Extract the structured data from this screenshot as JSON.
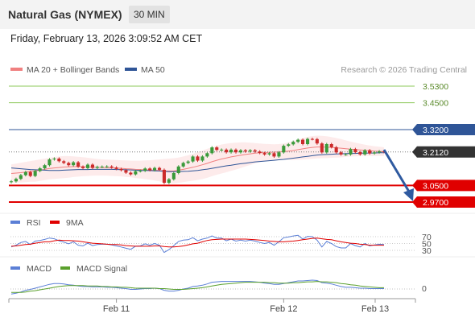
{
  "header": {
    "instrument": "Natural Gas (NYMEX)",
    "timeframe": "30 MIN"
  },
  "datetime": "Friday, February 13, 2026 3:09:52 AM CET",
  "legend": [
    {
      "label": "MA 20 + Bollinger Bands",
      "color": "#f08080"
    },
    {
      "label": "MA 50",
      "color": "#2f5597"
    }
  ],
  "copyright": "Research © 2026 Trading Central",
  "colors": {
    "up": "#3a9a3a",
    "down": "#cc2b2b",
    "support": "#e00000",
    "resistance_far": "#8dc85a",
    "resistance_near": "#2f5597",
    "current": "#333333",
    "arrow": "#2f5aa0"
  },
  "chart_data": [
    {
      "type": "candlestick",
      "ylim": [
        2.95,
        3.58
      ],
      "x_ticks": [
        "Feb 11",
        "Feb 12",
        "Feb 13"
      ],
      "levels": [
        {
          "label": "3.5300",
          "value": 3.53,
          "role": "resistance"
        },
        {
          "label": "3.4500",
          "value": 3.45,
          "role": "resistance"
        },
        {
          "label": "3.3200",
          "value": 3.32,
          "role": "resistance"
        },
        {
          "label": "3.2120",
          "value": 3.212,
          "role": "current"
        },
        {
          "label": "3.0500",
          "value": 3.05,
          "role": "support"
        },
        {
          "label": "2.9700",
          "value": 2.97,
          "role": "support"
        }
      ],
      "close": [
        3.07,
        3.082,
        3.1,
        3.115,
        3.096,
        3.12,
        3.133,
        3.148,
        3.176,
        3.18,
        3.167,
        3.159,
        3.148,
        3.162,
        3.141,
        3.134,
        3.151,
        3.135,
        3.14,
        3.141,
        3.142,
        3.137,
        3.13,
        3.124,
        3.112,
        3.104,
        3.119,
        3.121,
        3.132,
        3.124,
        3.135,
        3.126,
        3.063,
        3.08,
        3.11,
        3.142,
        3.159,
        3.166,
        3.19,
        3.17,
        3.19,
        3.206,
        3.234,
        3.222,
        3.223,
        3.21,
        3.223,
        3.21,
        3.22,
        3.214,
        3.22,
        3.214,
        3.207,
        3.2,
        3.206,
        3.19,
        3.21,
        3.242,
        3.249,
        3.261,
        3.271,
        3.25,
        3.275,
        3.274,
        3.253,
        3.21,
        3.25,
        3.235,
        3.21,
        3.2,
        3.2,
        3.226,
        3.211,
        3.2,
        3.22,
        3.205,
        3.21,
        3.215,
        3.212
      ],
      "ma20": [
        3.108,
        3.11,
        3.112,
        3.115,
        3.118,
        3.12,
        3.124,
        3.128,
        3.132,
        3.135,
        3.137,
        3.139,
        3.14,
        3.141,
        3.141,
        3.141,
        3.14,
        3.139,
        3.138,
        3.137,
        3.136,
        3.135,
        3.134,
        3.133,
        3.131,
        3.13,
        3.128,
        3.127,
        3.126,
        3.125,
        3.124,
        3.123,
        3.121,
        3.12,
        3.121,
        3.124,
        3.128,
        3.133,
        3.138,
        3.144,
        3.15,
        3.157,
        3.165,
        3.172,
        3.178,
        3.183,
        3.188,
        3.192,
        3.196,
        3.2,
        3.203,
        3.206,
        3.208,
        3.209,
        3.21,
        3.211,
        3.212,
        3.214,
        3.216,
        3.219,
        3.223,
        3.227,
        3.231,
        3.234,
        3.236,
        3.236,
        3.235,
        3.234,
        3.232,
        3.23,
        3.228,
        3.226,
        3.224,
        3.222,
        3.22,
        3.218,
        3.216,
        3.215,
        3.214
      ],
      "bb_upper": [
        3.152,
        3.156,
        3.16,
        3.164,
        3.168,
        3.172,
        3.176,
        3.18,
        3.184,
        3.188,
        3.19,
        3.192,
        3.192,
        3.191,
        3.189,
        3.187,
        3.184,
        3.181,
        3.178,
        3.176,
        3.175,
        3.174,
        3.173,
        3.172,
        3.171,
        3.17,
        3.17,
        3.17,
        3.171,
        3.172,
        3.174,
        3.176,
        3.178,
        3.18,
        3.182,
        3.185,
        3.19,
        3.196,
        3.203,
        3.211,
        3.219,
        3.227,
        3.235,
        3.242,
        3.248,
        3.252,
        3.255,
        3.257,
        3.258,
        3.258,
        3.257,
        3.255,
        3.253,
        3.251,
        3.25,
        3.249,
        3.25,
        3.253,
        3.258,
        3.265,
        3.272,
        3.279,
        3.285,
        3.289,
        3.291,
        3.29,
        3.288,
        3.284,
        3.279,
        3.274,
        3.268,
        3.262,
        3.257,
        3.252,
        3.247,
        3.243,
        3.24,
        3.237,
        3.235
      ],
      "bb_lower": [
        3.064,
        3.064,
        3.064,
        3.066,
        3.068,
        3.068,
        3.072,
        3.076,
        3.08,
        3.082,
        3.084,
        3.086,
        3.088,
        3.091,
        3.093,
        3.095,
        3.096,
        3.097,
        3.098,
        3.098,
        3.097,
        3.096,
        3.095,
        3.094,
        3.091,
        3.09,
        3.086,
        3.084,
        3.081,
        3.078,
        3.074,
        3.07,
        3.064,
        3.06,
        3.06,
        3.063,
        3.066,
        3.07,
        3.073,
        3.077,
        3.081,
        3.087,
        3.095,
        3.102,
        3.108,
        3.114,
        3.121,
        3.127,
        3.134,
        3.142,
        3.149,
        3.157,
        3.163,
        3.167,
        3.17,
        3.173,
        3.174,
        3.175,
        3.174,
        3.173,
        3.174,
        3.175,
        3.177,
        3.179,
        3.181,
        3.182,
        3.182,
        3.184,
        3.185,
        3.186,
        3.188,
        3.19,
        3.191,
        3.192,
        3.193,
        3.193,
        3.192,
        3.193,
        3.193
      ],
      "ma50": [
        3.135,
        3.133,
        3.131,
        3.129,
        3.127,
        3.126,
        3.125,
        3.124,
        3.123,
        3.123,
        3.123,
        3.124,
        3.125,
        3.126,
        3.127,
        3.127,
        3.127,
        3.128,
        3.128,
        3.128,
        3.128,
        3.128,
        3.127,
        3.127,
        3.126,
        3.125,
        3.124,
        3.123,
        3.122,
        3.122,
        3.121,
        3.12,
        3.118,
        3.117,
        3.117,
        3.117,
        3.118,
        3.119,
        3.121,
        3.123,
        3.126,
        3.129,
        3.133,
        3.137,
        3.141,
        3.145,
        3.148,
        3.152,
        3.155,
        3.158,
        3.161,
        3.164,
        3.166,
        3.168,
        3.17,
        3.172,
        3.174,
        3.176,
        3.179,
        3.182,
        3.185,
        3.188,
        3.191,
        3.194,
        3.197,
        3.199,
        3.2,
        3.201,
        3.202,
        3.203,
        3.204,
        3.205,
        3.205,
        3.206,
        3.206,
        3.207,
        3.207,
        3.208,
        3.208
      ]
    },
    {
      "type": "line",
      "ylim": [
        10,
        90
      ],
      "y_ticks": [
        "70",
        "50",
        "30"
      ],
      "legend": [
        {
          "label": "RSI",
          "color": "#5b7fd6"
        },
        {
          "label": "9MA",
          "color": "#e00000"
        }
      ],
      "series": [
        {
          "name": "RSI",
          "values": [
            40,
            45,
            53,
            56,
            47,
            57,
            59,
            62,
            66,
            64,
            58,
            54,
            49,
            55,
            45,
            43,
            51,
            44,
            47,
            48,
            48,
            46,
            43,
            40,
            36,
            33,
            42,
            43,
            49,
            45,
            50,
            45,
            24,
            32,
            44,
            56,
            60,
            61,
            67,
            58,
            63,
            66,
            72,
            66,
            66,
            58,
            63,
            57,
            60,
            57,
            60,
            57,
            53,
            50,
            53,
            45,
            55,
            67,
            69,
            72,
            74,
            63,
            71,
            70,
            60,
            40,
            56,
            50,
            41,
            37,
            37,
            50,
            44,
            40,
            50,
            43,
            46,
            48,
            47
          ]
        },
        {
          "name": "9MA",
          "values": [
            42,
            43,
            45,
            47,
            48,
            51,
            53,
            55,
            55,
            58,
            60,
            59,
            59,
            58,
            57,
            55,
            53,
            51,
            50,
            49,
            48,
            47,
            47,
            46,
            44,
            43,
            42,
            42,
            42,
            42,
            43,
            43,
            41,
            40,
            40,
            41,
            43,
            46,
            49,
            51,
            55,
            59,
            61,
            62,
            63,
            63,
            63,
            63,
            63,
            63,
            62,
            61,
            60,
            59,
            57,
            56,
            55,
            55,
            56,
            57,
            59,
            61,
            63,
            65,
            66,
            64,
            62,
            61,
            58,
            55,
            53,
            51,
            50,
            48,
            47,
            45,
            45,
            45,
            45
          ]
        }
      ]
    },
    {
      "type": "line",
      "y_ticks": [
        "0"
      ],
      "legend": [
        {
          "label": "MACD",
          "color": "#5b7fd6"
        },
        {
          "label": "MACD Signal",
          "color": "#5aa02c"
        }
      ],
      "series": [
        {
          "name": "MACD",
          "values": [
            -0.012,
            -0.01,
            -0.007,
            -0.003,
            -0.001,
            0.002,
            0.005,
            0.008,
            0.011,
            0.013,
            0.013,
            0.012,
            0.01,
            0.009,
            0.007,
            0.006,
            0.006,
            0.005,
            0.005,
            0.005,
            0.004,
            0.004,
            0.003,
            0.002,
            0.001,
            -0.001,
            -0.001,
            0,
            0.001,
            0.001,
            0.002,
            0.001,
            -0.003,
            -0.005,
            -0.005,
            -0.003,
            0,
            0.002,
            0.006,
            0.007,
            0.009,
            0.012,
            0.016,
            0.017,
            0.018,
            0.018,
            0.018,
            0.018,
            0.018,
            0.018,
            0.018,
            0.017,
            0.016,
            0.014,
            0.013,
            0.011,
            0.011,
            0.013,
            0.015,
            0.017,
            0.019,
            0.019,
            0.02,
            0.021,
            0.02,
            0.015,
            0.014,
            0.012,
            0.009,
            0.006,
            0.004,
            0.004,
            0.003,
            0.002,
            0.002,
            0.001,
            0.001,
            0.001,
            0.001
          ]
        },
        {
          "name": "MACD Signal",
          "values": [
            -0.008,
            -0.008,
            -0.008,
            -0.007,
            -0.005,
            -0.004,
            -0.002,
            0,
            0.002,
            0.004,
            0.006,
            0.007,
            0.008,
            0.008,
            0.008,
            0.008,
            0.007,
            0.007,
            0.007,
            0.006,
            0.006,
            0.005,
            0.005,
            0.004,
            0.004,
            0.003,
            0.002,
            0.002,
            0.002,
            0.002,
            0.002,
            0.001,
            0.001,
            0,
            -0.001,
            -0.001,
            -0.001,
            0,
            0.001,
            0.002,
            0.003,
            0.005,
            0.007,
            0.009,
            0.011,
            0.012,
            0.013,
            0.014,
            0.015,
            0.016,
            0.016,
            0.016,
            0.016,
            0.016,
            0.015,
            0.015,
            0.014,
            0.014,
            0.014,
            0.015,
            0.015,
            0.016,
            0.017,
            0.017,
            0.018,
            0.017,
            0.017,
            0.016,
            0.015,
            0.013,
            0.012,
            0.01,
            0.009,
            0.007,
            0.006,
            0.005,
            0.004,
            0.003,
            0.003
          ]
        }
      ]
    }
  ]
}
